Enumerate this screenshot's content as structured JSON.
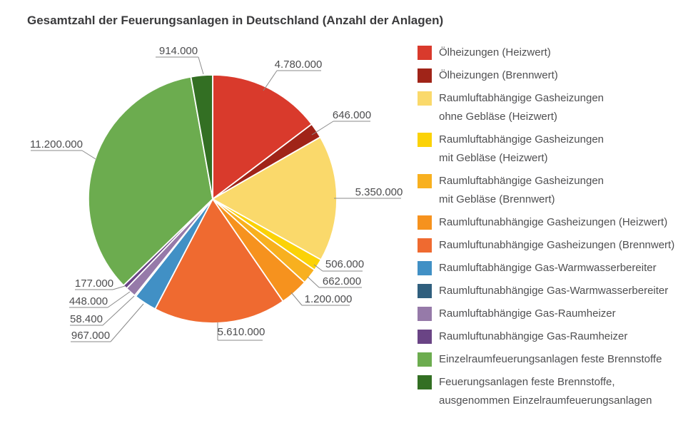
{
  "title": "Gesamtzahl der Feuerungsanlagen in Deutschland (Anzahl der Anlagen)",
  "colors": {
    "background": "#ffffff",
    "title_text": "#3b3b3d",
    "label_text": "#4c4c4e",
    "callout_line": "#8a8a8a",
    "legend_text": "#4f4f51",
    "slice_border": "#ffffff"
  },
  "chart_data": {
    "type": "pie",
    "title": "Gesamtzahl der Feuerungsanlagen in Deutschland (Anzahl der Anlagen)",
    "unit": "Anlagen",
    "total": 32518400,
    "legend_position": "right",
    "clockwise_from_top": true,
    "slices": [
      {
        "name": "Ölheizungen (Heizwert)",
        "label_lines": [
          "Ölheizungen (Heizwert)"
        ],
        "value": 4780000,
        "value_label": "4.780.000",
        "color": "#d93a2c"
      },
      {
        "name": "Ölheizungen (Brennwert)",
        "label_lines": [
          "Ölheizungen (Brennwert)"
        ],
        "value": 646000,
        "value_label": "646.000",
        "color": "#a02418"
      },
      {
        "name": "Raumluftabhängige Gasheizungen ohne Gebläse (Heizwert)",
        "label_lines": [
          "Raumluftabhängige Gasheizungen",
          "ohne Gebläse (Heizwert)"
        ],
        "value": 5350000,
        "value_label": "5.350.000",
        "color": "#fad96b"
      },
      {
        "name": "Raumluftabhängige Gasheizungen mit Gebläse (Heizwert)",
        "label_lines": [
          "Raumluftabhängige Gasheizungen",
          "mit Gebläse (Heizwert)"
        ],
        "value": 506000,
        "value_label": "506.000",
        "color": "#fbd207"
      },
      {
        "name": "Raumluftabhängige Gasheizungen mit Gebläse (Brennwert)",
        "label_lines": [
          "Raumluftabhängige Gasheizungen",
          "mit Gebläse (Brennwert)"
        ],
        "value": 662000,
        "value_label": "662.000",
        "color": "#f8b01f"
      },
      {
        "name": "Raumluftunabhängige Gasheizungen (Heizwert)",
        "label_lines": [
          "Raumluftunabhängige Gasheizungen (Heizwert)"
        ],
        "value": 1200000,
        "value_label": "1.200.000",
        "color": "#f6921e"
      },
      {
        "name": "Raumluftunabhängige Gasheizungen (Brennwert)",
        "label_lines": [
          "Raumluftunabhängige Gasheizungen (Brennwert)"
        ],
        "value": 5610000,
        "value_label": "5.610.000",
        "color": "#ef6a30"
      },
      {
        "name": "Raumluftabhängige Gas-Warmwasserbereiter",
        "label_lines": [
          "Raumluftabhängige Gas-Warmwasserbereiter"
        ],
        "value": 967000,
        "value_label": "967.000",
        "color": "#4190c5"
      },
      {
        "name": "Raumluftunabhängige Gas-Warmwasserbereiter",
        "label_lines": [
          "Raumluftunabhängige Gas-Warmwasserbereiter"
        ],
        "value": 58400,
        "value_label": "58.400",
        "color": "#305f7e"
      },
      {
        "name": "Raumluftabhängige Gas-Raumheizer",
        "label_lines": [
          "Raumluftabhängige Gas-Raumheizer"
        ],
        "value": 448000,
        "value_label": "448.000",
        "color": "#967aa9"
      },
      {
        "name": "Raumluftunabhängige Gas-Raumheizer",
        "label_lines": [
          "Raumluftunabhängige Gas-Raumheizer"
        ],
        "value": 177000,
        "value_label": "177.000",
        "color": "#6a4485"
      },
      {
        "name": "Einzelraumfeuerungsanlagen feste Brennstoffe",
        "label_lines": [
          "Einzelraumfeuerungsanlagen feste Brennstoffe"
        ],
        "value": 11200000,
        "value_label": "11.200.000",
        "color": "#6cac4f"
      },
      {
        "name": "Feuerungsanlagen feste Brennstoffe, ausgenommen Einzelraumfeuerungsanlagen",
        "label_lines": [
          "Feuerungsanlagen feste Brennstoffe,",
          "ausgenommen Einzelraumfeuerungsanlagen"
        ],
        "value": 914000,
        "value_label": "914.000",
        "color": "#336f23"
      }
    ]
  }
}
